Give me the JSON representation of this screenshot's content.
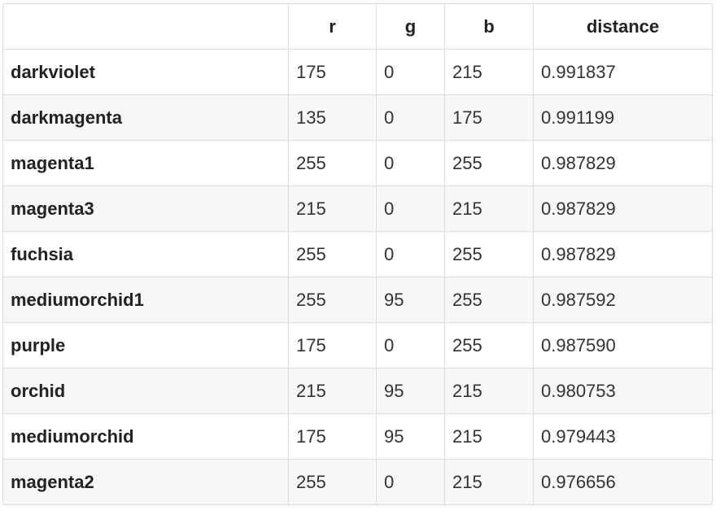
{
  "table": {
    "headers": [
      "",
      "r",
      "g",
      "b",
      "distance"
    ],
    "rows": [
      {
        "name": "darkviolet",
        "r": "175",
        "g": "0",
        "b": "215",
        "distance": "0.991837"
      },
      {
        "name": "darkmagenta",
        "r": "135",
        "g": "0",
        "b": "175",
        "distance": "0.991199"
      },
      {
        "name": "magenta1",
        "r": "255",
        "g": "0",
        "b": "255",
        "distance": "0.987829"
      },
      {
        "name": "magenta3",
        "r": "215",
        "g": "0",
        "b": "215",
        "distance": "0.987829"
      },
      {
        "name": "fuchsia",
        "r": "255",
        "g": "0",
        "b": "255",
        "distance": "0.987829"
      },
      {
        "name": "mediumorchid1",
        "r": "255",
        "g": "95",
        "b": "255",
        "distance": "0.987592"
      },
      {
        "name": "purple",
        "r": "175",
        "g": "0",
        "b": "255",
        "distance": "0.987590"
      },
      {
        "name": "orchid",
        "r": "215",
        "g": "95",
        "b": "215",
        "distance": "0.980753"
      },
      {
        "name": "mediumorchid",
        "r": "175",
        "g": "95",
        "b": "215",
        "distance": "0.979443"
      },
      {
        "name": "magenta2",
        "r": "255",
        "g": "0",
        "b": "215",
        "distance": "0.976656"
      }
    ]
  },
  "colors": {
    "border": "#dddddd",
    "row_alt": "#f7f7f7",
    "text": "#222222"
  }
}
